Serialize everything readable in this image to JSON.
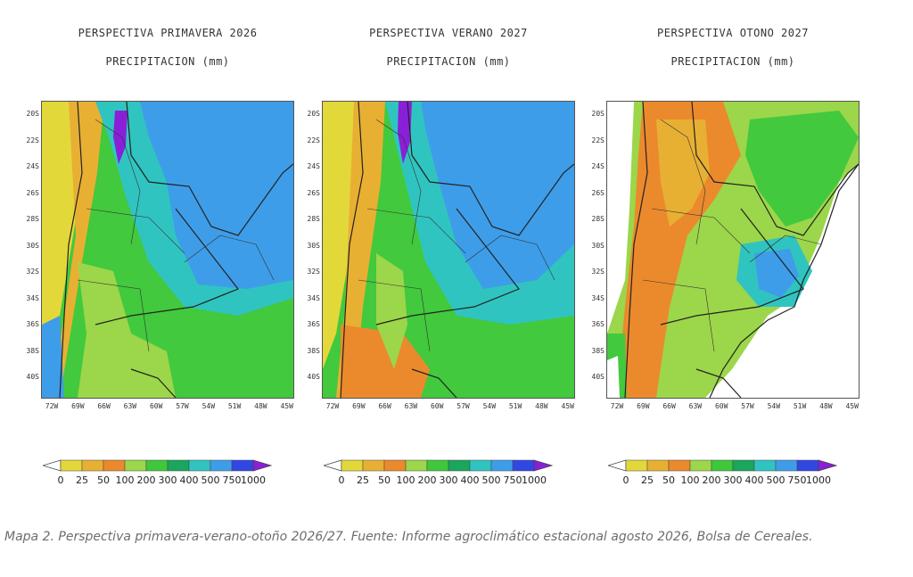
{
  "panels": [
    {
      "title": "PERSPECTIVA PRIMAVERA 2026",
      "subtitle": "PRECIPITACION (mm)"
    },
    {
      "title": "PERSPECTIVA VERANO 2027",
      "subtitle": "PRECIPITACION (mm)"
    },
    {
      "title": "PERSPECTIVA OTONO 2027",
      "subtitle": "PRECIPITACION (mm)"
    }
  ],
  "lat_labels": [
    "20S",
    "22S",
    "24S",
    "26S",
    "28S",
    "30S",
    "32S",
    "34S",
    "36S",
    "38S",
    "40S"
  ],
  "lon_labels": [
    "72W",
    "69W",
    "66W",
    "63W",
    "60W",
    "57W",
    "54W",
    "51W",
    "48W",
    "45W"
  ],
  "legend": {
    "ticks": [
      "0",
      "25",
      "50",
      "100",
      "200",
      "300",
      "400",
      "500",
      "750",
      "1000"
    ],
    "colors": [
      "#ffffff",
      "#e3d83a",
      "#e8b033",
      "#eb8a2c",
      "#9cd64a",
      "#3fc83b",
      "#1aa65c",
      "#30c4c0",
      "#3e9de8",
      "#3246e3",
      "#8a1fd8"
    ]
  },
  "caption": "Mapa 2. Perspectiva primavera-verano-otoño 2026/27.  Fuente: Informe agroclimático estacional agosto 2026, Bolsa de Cereales."
}
